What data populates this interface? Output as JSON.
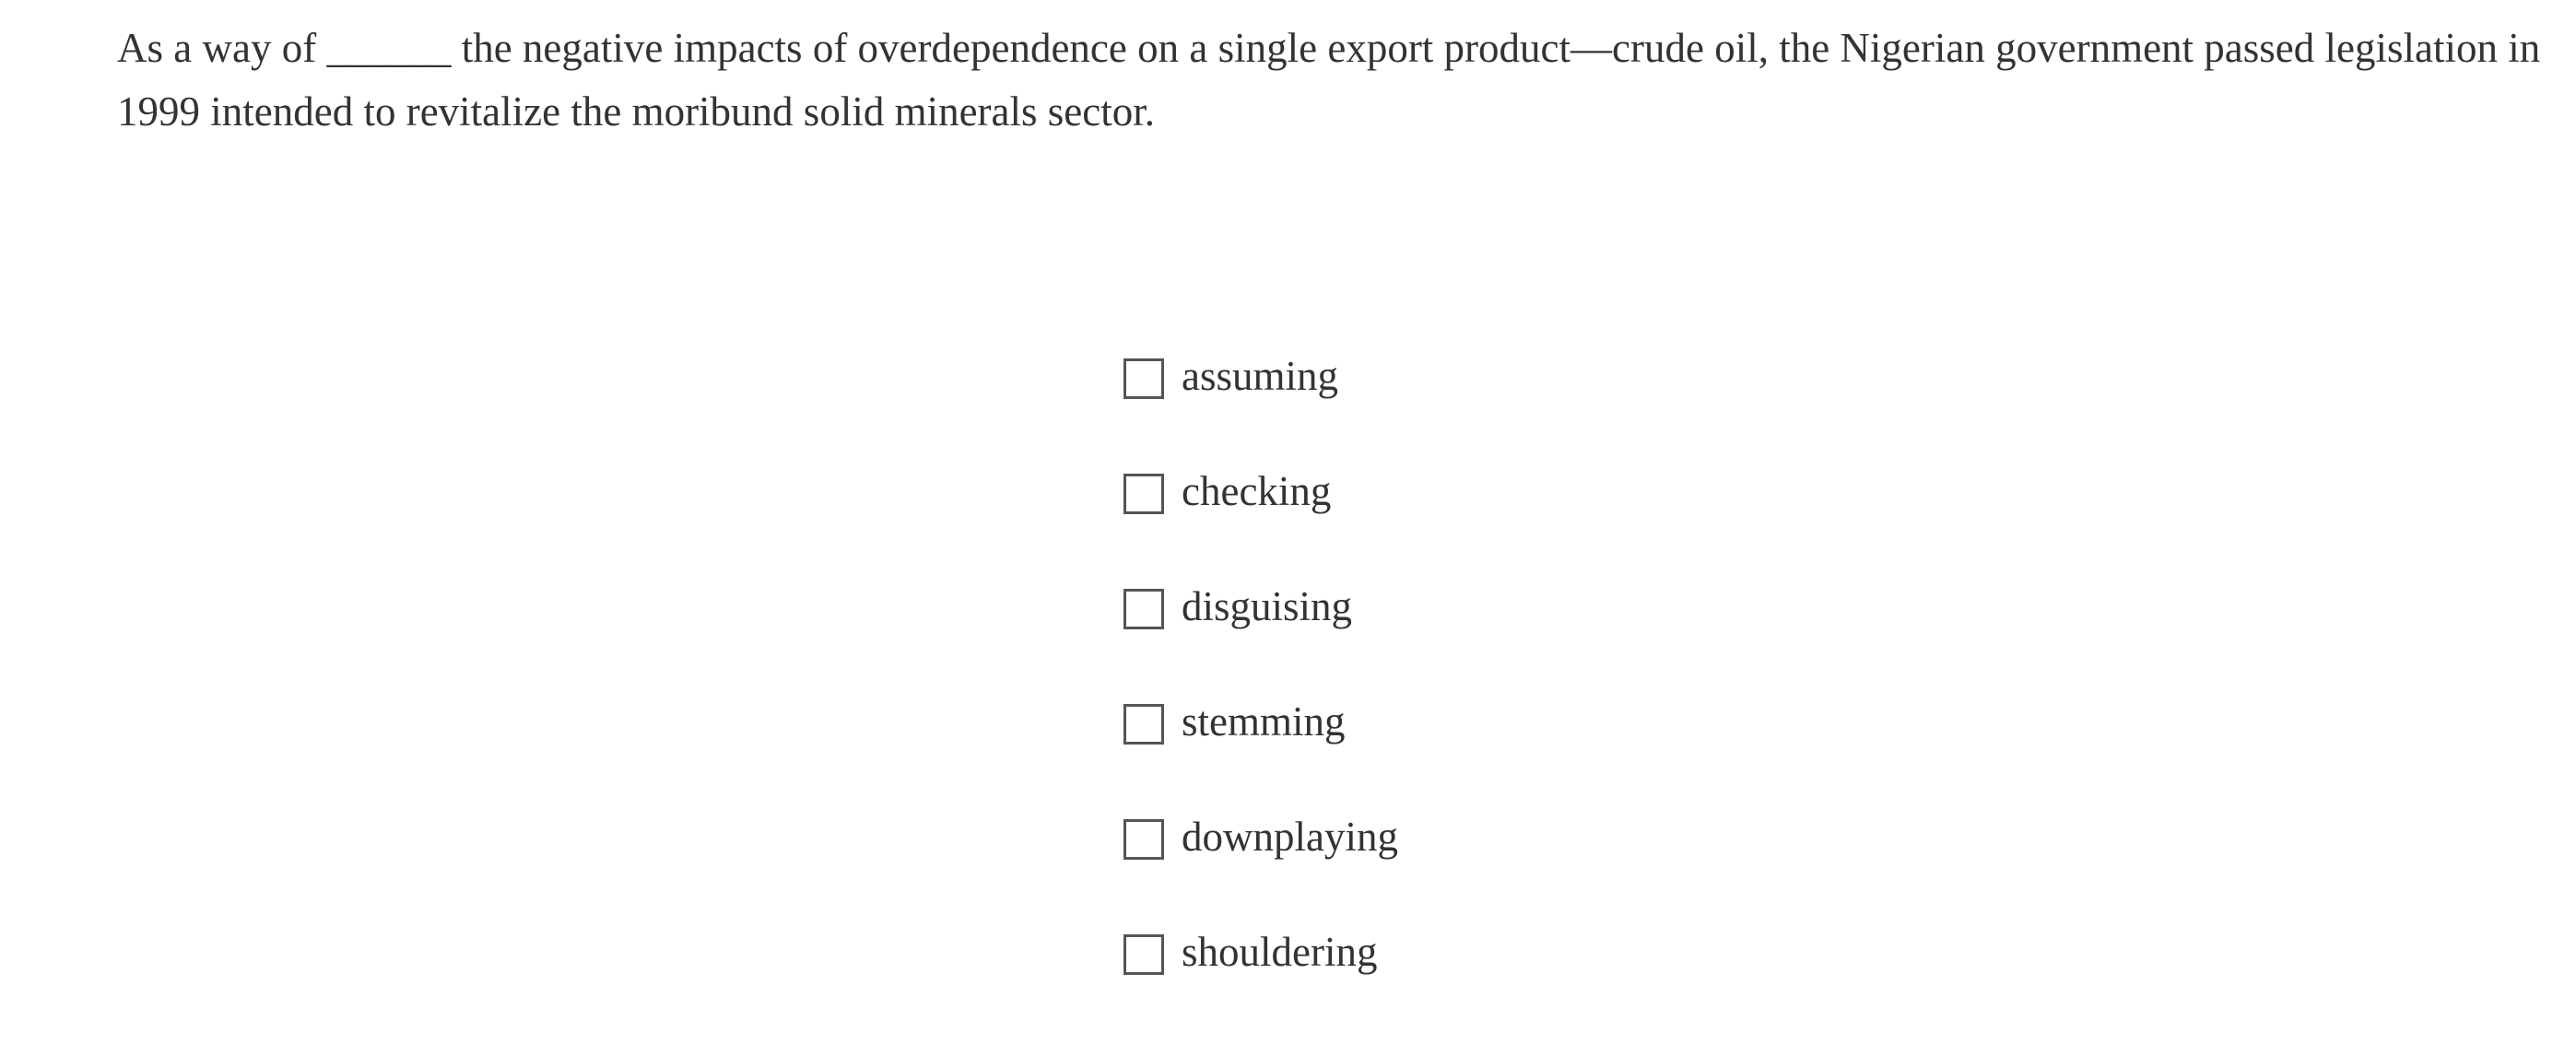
{
  "question": {
    "before_blank": "As a way of ",
    "blank": "______",
    "after_blank": " the negative impacts of overdependence on a single export product—crude oil, the Nigerian government passed legislation in 1999 intended to revitalize the moribund solid minerals sector."
  },
  "options": [
    {
      "label": "assuming",
      "checked": false
    },
    {
      "label": "checking",
      "checked": false
    },
    {
      "label": "disguising",
      "checked": false
    },
    {
      "label": "stemming",
      "checked": false
    },
    {
      "label": "downplaying",
      "checked": false
    },
    {
      "label": "shouldering",
      "checked": false
    }
  ]
}
